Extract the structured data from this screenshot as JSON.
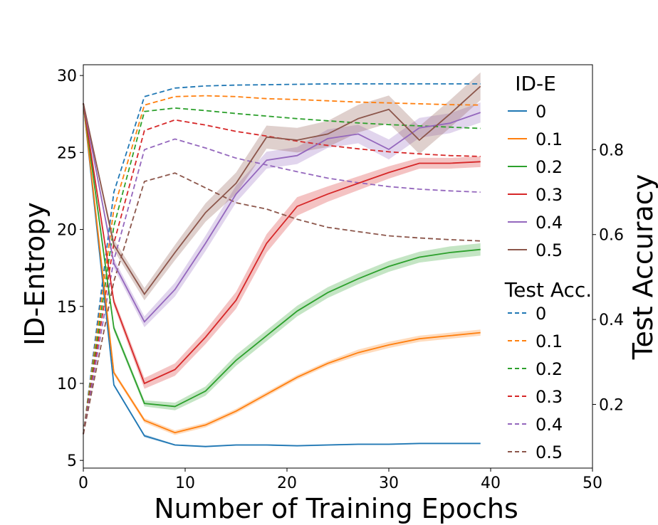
{
  "chart_data": {
    "type": "line",
    "title": "",
    "xlabel": "Number of Training Epochs",
    "ylabel_left": "ID-Entropy",
    "ylabel_right": "Test Accuracy",
    "xlim": [
      0,
      50
    ],
    "ylim_left": [
      4.5,
      30.7
    ],
    "ylim_right": [
      0.05,
      1.0
    ],
    "x_ticks": [
      0,
      10,
      20,
      30,
      40,
      50
    ],
    "y_ticks_left": [
      5,
      10,
      15,
      20,
      25,
      30
    ],
    "y_ticks_right": [
      0.2,
      0.4,
      0.6,
      0.8
    ],
    "y_tick_labels_right": [
      "0.2",
      "0.4",
      "0.6",
      "0.8"
    ],
    "grid": false,
    "legend_groups": [
      {
        "title": "ID-E",
        "style": "solid",
        "labels": [
          "0",
          "0.1",
          "0.2",
          "0.3",
          "0.4",
          "0.5"
        ]
      },
      {
        "title": "Test Acc.",
        "style": "dashed",
        "labels": [
          "0",
          "0.1",
          "0.2",
          "0.3",
          "0.4",
          "0.5"
        ]
      }
    ],
    "series_colors": [
      "#1f77b4",
      "#ff7f0e",
      "#2ca02c",
      "#d62728",
      "#9467bd",
      "#8c564b"
    ],
    "x": [
      0,
      3,
      6,
      9,
      12,
      15,
      18,
      21,
      24,
      27,
      30,
      33,
      36,
      39
    ],
    "id_entropy_series": [
      {
        "name": "0",
        "values": [
          28.2,
          9.9,
          6.6,
          6.0,
          5.9,
          6.0,
          6.0,
          5.95,
          6.0,
          6.05,
          6.05,
          6.1,
          6.1,
          6.1
        ],
        "band": [
          0.05,
          0.1,
          0.1,
          0.05,
          0.05,
          0.05,
          0.05,
          0.05,
          0.05,
          0.05,
          0.05,
          0.05,
          0.05,
          0.05
        ]
      },
      {
        "name": "0.1",
        "values": [
          28.2,
          10.7,
          7.6,
          6.8,
          7.3,
          8.2,
          9.3,
          10.4,
          11.3,
          12.0,
          12.5,
          12.9,
          13.1,
          13.3
        ],
        "band": [
          0.05,
          0.15,
          0.15,
          0.15,
          0.15,
          0.15,
          0.15,
          0.15,
          0.15,
          0.2,
          0.2,
          0.2,
          0.2,
          0.2
        ]
      },
      {
        "name": "0.2",
        "values": [
          28.2,
          13.6,
          8.7,
          8.5,
          9.5,
          11.5,
          13.1,
          14.7,
          15.9,
          16.8,
          17.6,
          18.2,
          18.5,
          18.7
        ],
        "band": [
          0.05,
          0.2,
          0.2,
          0.25,
          0.3,
          0.35,
          0.35,
          0.35,
          0.35,
          0.35,
          0.35,
          0.35,
          0.4,
          0.4
        ]
      },
      {
        "name": "0.3",
        "values": [
          28.2,
          15.3,
          10.0,
          10.9,
          13.0,
          15.4,
          19.1,
          21.5,
          22.3,
          23.0,
          23.7,
          24.3,
          24.3,
          24.4
        ],
        "band": [
          0.05,
          0.25,
          0.35,
          0.4,
          0.45,
          0.55,
          0.6,
          0.6,
          0.5,
          0.45,
          0.4,
          0.35,
          0.35,
          0.35
        ]
      },
      {
        "name": "0.4",
        "values": [
          28.2,
          17.8,
          14.0,
          16.1,
          19.1,
          22.3,
          24.5,
          24.8,
          25.9,
          26.2,
          25.2,
          26.6,
          26.9,
          27.6
        ],
        "band": [
          0.05,
          0.3,
          0.35,
          0.45,
          0.5,
          0.55,
          0.55,
          0.55,
          0.6,
          0.6,
          0.65,
          0.65,
          0.65,
          0.65
        ]
      },
      {
        "name": "0.5",
        "values": [
          28.2,
          19.0,
          15.8,
          18.5,
          21.1,
          23.0,
          26.0,
          25.8,
          26.2,
          27.2,
          27.8,
          25.8,
          27.5,
          29.3
        ],
        "band": [
          0.05,
          0.35,
          0.4,
          0.5,
          0.6,
          0.7,
          0.75,
          0.8,
          0.85,
          0.9,
          0.9,
          0.9,
          0.9,
          0.9
        ]
      }
    ],
    "test_accuracy_series": [
      {
        "name": "0",
        "values": [
          0.13,
          0.7,
          0.925,
          0.945,
          0.95,
          0.952,
          0.953,
          0.954,
          0.955,
          0.955,
          0.955,
          0.955,
          0.955,
          0.955
        ]
      },
      {
        "name": "0.1",
        "values": [
          0.13,
          0.66,
          0.905,
          0.925,
          0.927,
          0.925,
          0.92,
          0.918,
          0.915,
          0.912,
          0.91,
          0.908,
          0.906,
          0.905
        ]
      },
      {
        "name": "0.2",
        "values": [
          0.13,
          0.62,
          0.89,
          0.898,
          0.892,
          0.885,
          0.879,
          0.873,
          0.868,
          0.863,
          0.859,
          0.856,
          0.853,
          0.85
        ]
      },
      {
        "name": "0.3",
        "values": [
          0.13,
          0.58,
          0.845,
          0.87,
          0.858,
          0.843,
          0.832,
          0.82,
          0.81,
          0.802,
          0.795,
          0.79,
          0.786,
          0.784
        ]
      },
      {
        "name": "0.4",
        "values": [
          0.13,
          0.54,
          0.8,
          0.825,
          0.804,
          0.78,
          0.764,
          0.748,
          0.733,
          0.722,
          0.713,
          0.707,
          0.703,
          0.7
        ]
      },
      {
        "name": "0.5",
        "values": [
          0.13,
          0.49,
          0.725,
          0.745,
          0.71,
          0.675,
          0.66,
          0.636,
          0.617,
          0.607,
          0.597,
          0.592,
          0.588,
          0.585
        ]
      }
    ]
  }
}
